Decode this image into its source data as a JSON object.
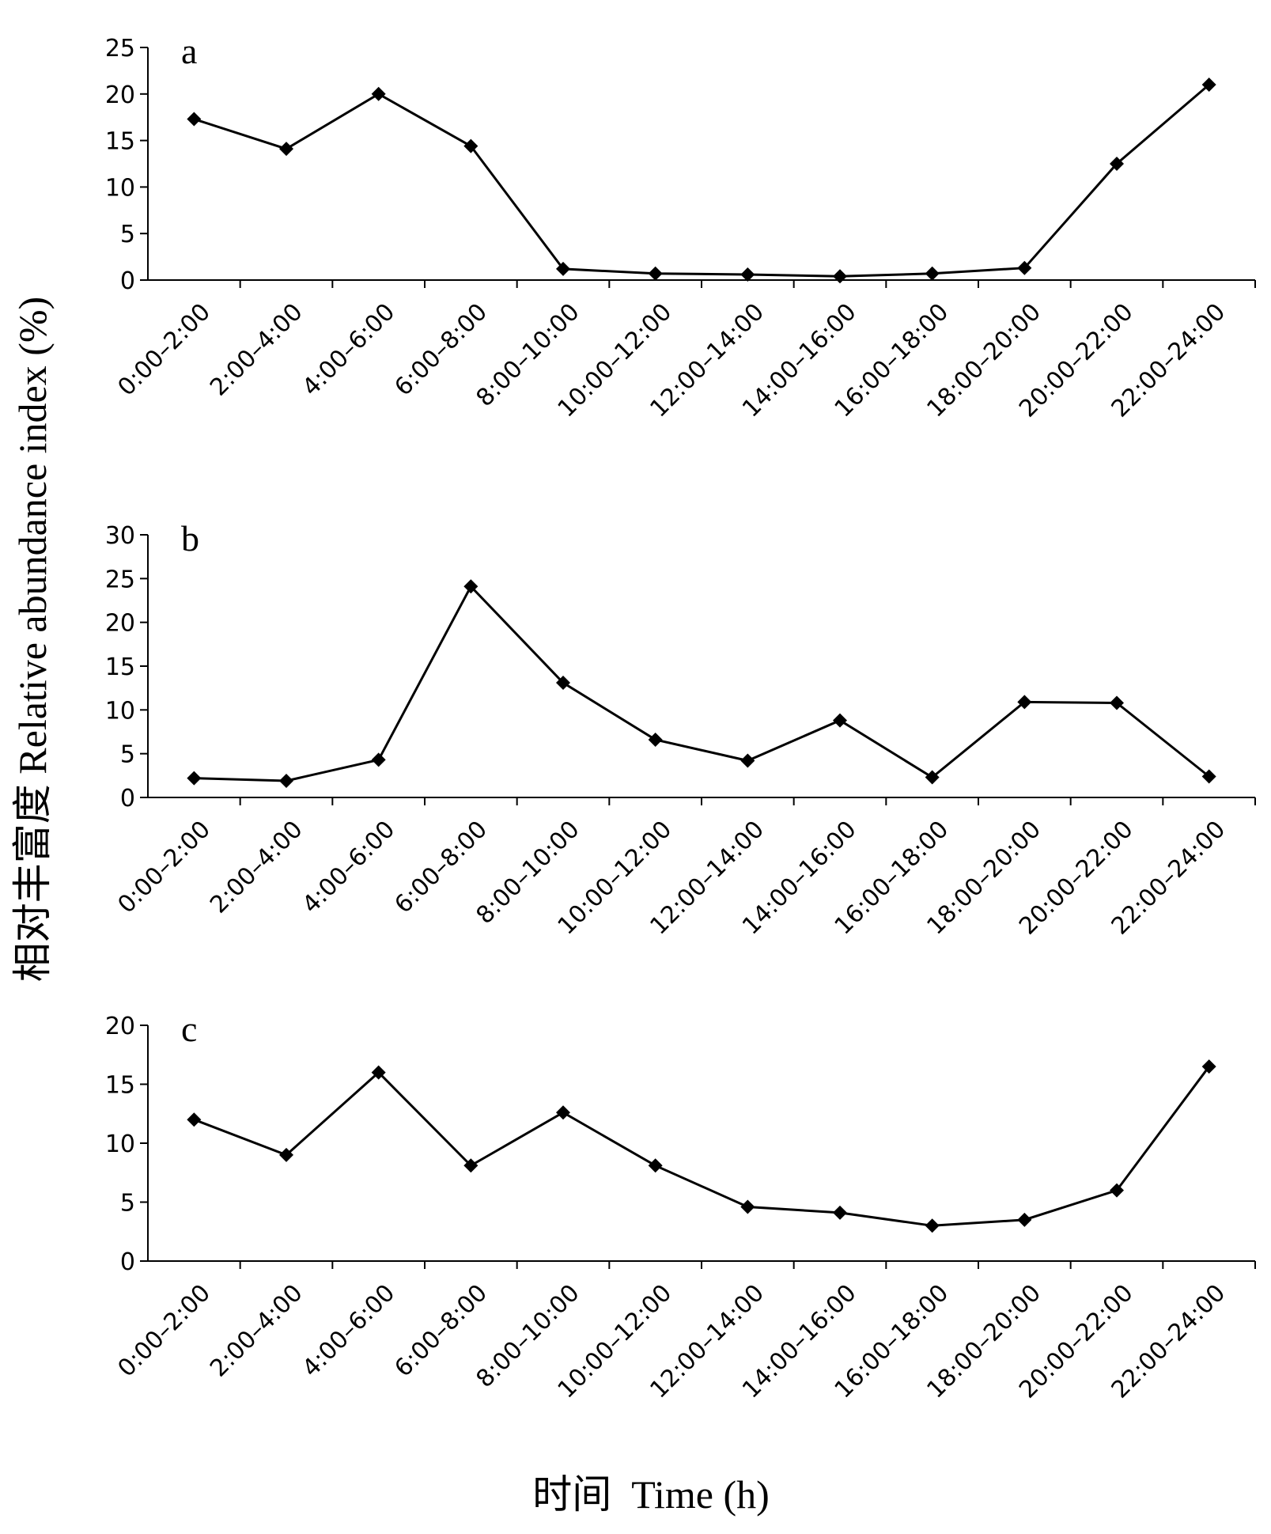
{
  "figure": {
    "ylabel": "相对丰富度 Relative abundance index (%)",
    "xlabel": "时间  Time (h)"
  },
  "chart_data": [
    {
      "type": "line",
      "panel_label": "a",
      "categories": [
        "0:00–2:00",
        "2:00–4:00",
        "4:00–6:00",
        "6:00–8:00",
        "8:00–10:00",
        "10:00–12:00",
        "12:00–14:00",
        "14:00–16:00",
        "16:00–18:00",
        "18:00–20:00",
        "20:00–22:00",
        "22:00–24:00"
      ],
      "values": [
        17.3,
        14.1,
        20.0,
        14.4,
        1.2,
        0.7,
        0.6,
        0.4,
        0.7,
        1.3,
        12.5,
        21.0
      ],
      "ylim": [
        0,
        25
      ],
      "yticks": [
        0,
        5,
        10,
        15,
        20,
        25
      ],
      "grid": false,
      "marker": "diamond",
      "color": "#000000"
    },
    {
      "type": "line",
      "panel_label": "b",
      "categories": [
        "0:00–2:00",
        "2:00–4:00",
        "4:00–6:00",
        "6:00–8:00",
        "8:00–10:00",
        "10:00–12:00",
        "12:00–14:00",
        "14:00–16:00",
        "16:00–18:00",
        "18:00–20:00",
        "20:00–22:00",
        "22:00–24:00"
      ],
      "values": [
        2.2,
        1.9,
        4.3,
        24.1,
        13.1,
        6.6,
        4.2,
        8.8,
        2.3,
        10.9,
        10.8,
        2.4
      ],
      "ylim": [
        0,
        30
      ],
      "yticks": [
        0,
        5,
        10,
        15,
        20,
        25,
        30
      ],
      "grid": false,
      "marker": "diamond",
      "color": "#000000"
    },
    {
      "type": "line",
      "panel_label": "c",
      "categories": [
        "0:00–2:00",
        "2:00–4:00",
        "4:00–6:00",
        "6:00–8:00",
        "8:00–10:00",
        "10:00–12:00",
        "12:00–14:00",
        "14:00–16:00",
        "16:00–18:00",
        "18:00–20:00",
        "20:00–22:00",
        "22:00–24:00"
      ],
      "values": [
        12.0,
        9.0,
        16.0,
        8.1,
        12.6,
        8.1,
        4.6,
        4.1,
        3.0,
        3.5,
        6.0,
        16.5
      ],
      "ylim": [
        0,
        20
      ],
      "yticks": [
        0,
        5,
        10,
        15,
        20
      ],
      "grid": false,
      "marker": "diamond",
      "color": "#000000"
    }
  ]
}
